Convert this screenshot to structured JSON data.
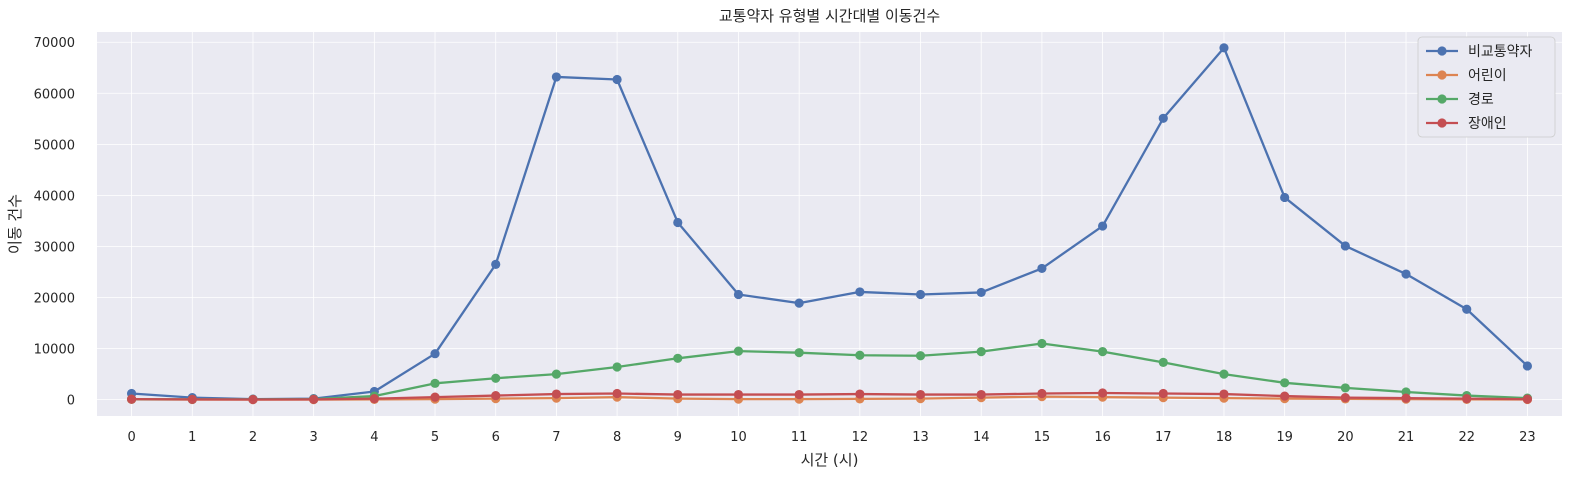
{
  "chart_data": {
    "type": "line",
    "title": "교통약자 유형별 시간대별 이동건수",
    "xlabel": "시간 (시)",
    "ylabel": "이동 건수",
    "x": [
      0,
      1,
      2,
      3,
      4,
      5,
      6,
      7,
      8,
      9,
      10,
      11,
      12,
      13,
      14,
      15,
      16,
      17,
      18,
      19,
      20,
      21,
      22,
      23
    ],
    "ylim": [
      -3200,
      72000
    ],
    "yticks": [
      0,
      10000,
      20000,
      30000,
      40000,
      50000,
      60000,
      70000
    ],
    "grid": true,
    "legend_position": "top-right",
    "series": [
      {
        "name": "비교통약자",
        "color": "#4c72b0",
        "values": [
          1200,
          400,
          100,
          200,
          1600,
          9000,
          26500,
          63200,
          62700,
          34700,
          20600,
          18900,
          21100,
          20600,
          21000,
          25700,
          34000,
          55100,
          68900,
          39600,
          30100,
          24600,
          17700,
          6600
        ]
      },
      {
        "name": "어린이",
        "color": "#dd8452",
        "values": [
          50,
          20,
          10,
          10,
          50,
          100,
          200,
          300,
          500,
          200,
          100,
          100,
          150,
          200,
          400,
          600,
          500,
          400,
          300,
          200,
          150,
          100,
          50,
          30
        ]
      },
      {
        "name": "경로",
        "color": "#55a868",
        "values": [
          100,
          50,
          50,
          100,
          700,
          3200,
          4200,
          5000,
          6400,
          8100,
          9500,
          9200,
          8700,
          8600,
          9400,
          11000,
          9400,
          7300,
          5000,
          3300,
          2300,
          1500,
          800,
          300
        ]
      },
      {
        "name": "장애인",
        "color": "#c44e52",
        "values": [
          100,
          50,
          30,
          50,
          200,
          500,
          800,
          1100,
          1200,
          1000,
          1000,
          1000,
          1100,
          1000,
          1000,
          1200,
          1300,
          1200,
          1100,
          700,
          400,
          300,
          200,
          100
        ]
      }
    ]
  }
}
